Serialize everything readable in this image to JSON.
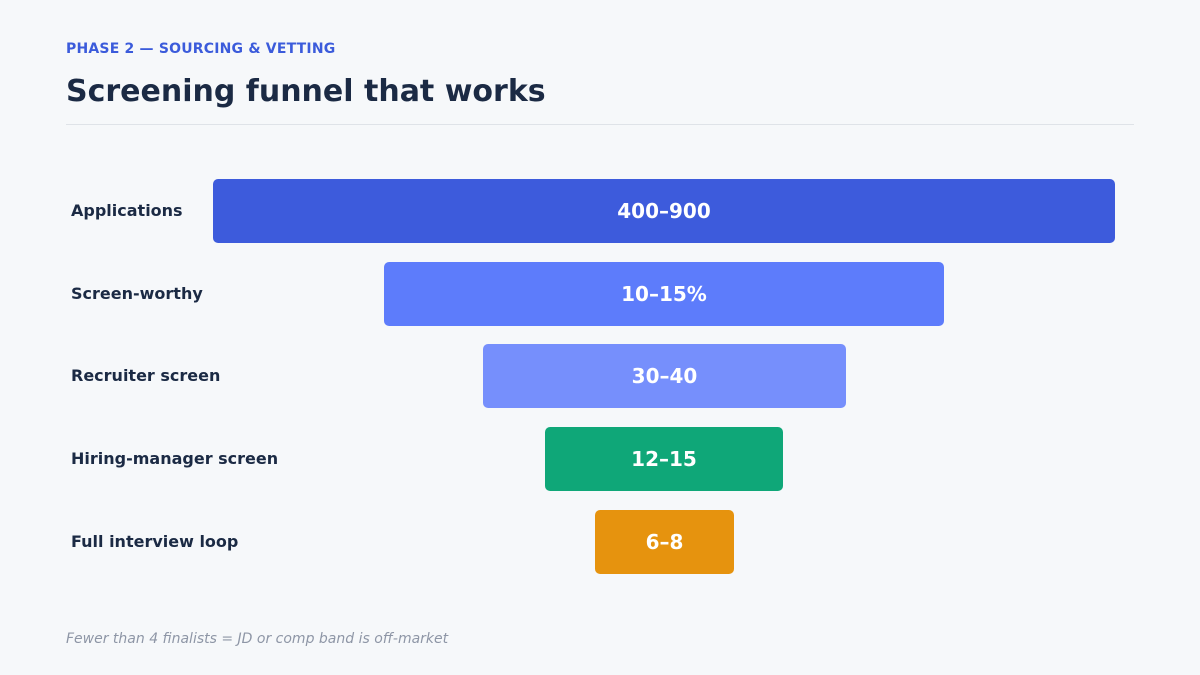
{
  "header": {
    "eyebrow": "PHASE 2 — SOURCING & VETTING",
    "title": "Screening funnel that works"
  },
  "colors": {
    "accent": "#3b5bdb",
    "title": "#1b2a44"
  },
  "funnel": {
    "stages": [
      {
        "label": "Applications",
        "value": "400–900",
        "color": "#3d5bdc"
      },
      {
        "label": "Screen-worthy",
        "value": "10–15%",
        "color": "#5d7cfb"
      },
      {
        "label": "Recruiter screen",
        "value": "30–40",
        "color": "#768ffc"
      },
      {
        "label": "Hiring-manager screen",
        "value": "12–15",
        "color": "#0fa778"
      },
      {
        "label": "Full interview loop",
        "value": "6–8",
        "color": "#e6930e"
      }
    ]
  },
  "footnote": "Fewer than 4 finalists = JD or comp band is off-market"
}
